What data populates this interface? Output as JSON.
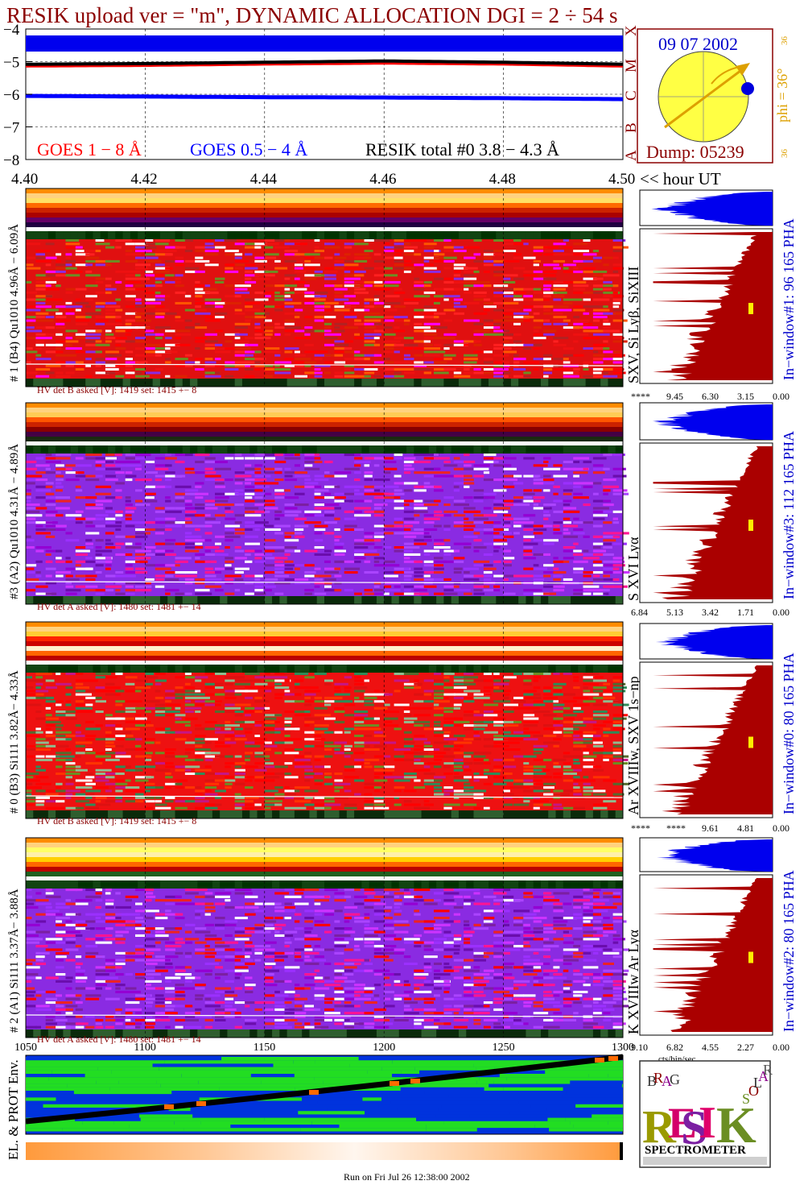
{
  "header": {
    "title": "RESIK upload ver = \"m\", DYNAMIC ALLOCATION  DGI =   2 ÷  54 s"
  },
  "goes_panel": {
    "legend": {
      "goes_long": "GOES 1 − 8 Å",
      "goes_short": "GOES 0.5 − 4 Å",
      "resik_total": "RESIK total #0  3.8 − 4.3 Å"
    },
    "class_letters": [
      "A",
      "B",
      "C",
      "M",
      "X"
    ],
    "colors": {
      "goes_long": "#ff0000",
      "goes_short": "#0000ff",
      "resik_total": "#000000"
    }
  },
  "time_axis": {
    "ticks": [
      "4.40",
      "4.42",
      "4.44",
      "4.46",
      "4.48",
      "4.50"
    ],
    "unit_label": "<< hour UT"
  },
  "sun_panel": {
    "date": "09 07 2002",
    "phi_label": "phi = 36°",
    "phi_small_top": "36",
    "phi_small_bottom": "36",
    "dump": "Dump: 05239",
    "colors": {
      "sun": "#ffff44",
      "arrow": "#dda000",
      "text": "#8b0000",
      "date": "#0000cc"
    }
  },
  "spectra": [
    {
      "det_label": "# 1 (B4) Qu1010 4.96Å − 6.09Å",
      "lines_label": "SXV, Si Lyβ, SiXIII",
      "pha_label": "In−window#1:   96 165  PHA",
      "hv_text": "HV det B asked [V]:  1419 set:  1415 +−    8",
      "pha_ticks": [
        "****",
        "9.45",
        "6.30",
        "3.15",
        "0.00"
      ],
      "palette": "red"
    },
    {
      "det_label": "#3 (A2) Qu1010  4.31Å − 4.89Å",
      "lines_label": "S XVI Lyα",
      "pha_label": "In−window#3:  112 165  PHA",
      "hv_text": "HV det A asked [V]:  1480 set:  1481 +−    14",
      "pha_ticks": [
        "6.84",
        "5.13",
        "3.42",
        "1.71",
        "0.00"
      ],
      "palette": "purple"
    },
    {
      "det_label": "# 0 (B3) Si111  3.82Å− 4.33Å",
      "lines_label": "Ar XVIIIw,  SXV  1s−np",
      "pha_label": "In−window#0:   80 165  PHA",
      "hv_text": "HV det B asked [V]:  1419 set:  1415 +−    8",
      "pha_ticks": [
        "****",
        "****",
        "9.61",
        "4.81",
        "0.00"
      ],
      "palette": "redgreen"
    },
    {
      "det_label": "# 2 (A1) Si111  3.37Å−  3.88Å",
      "lines_label": "K XVIIIw  Ar Lyα",
      "pha_label": "In−window#2:   80 165  PHA",
      "hv_text": "HV det A asked [V]:  1480 set:  1481 +−    14",
      "pha_ticks": [
        "9.10",
        "6.82",
        "4.55",
        "2.27",
        "0.00"
      ],
      "palette": "purple"
    }
  ],
  "pha_axis_unit": "cts/bin/sec",
  "env_panel": {
    "label": "EL. & PROT Env.",
    "ticks": [
      "1050",
      "1100",
      "1150",
      "1200",
      "1250",
      "1300"
    ]
  },
  "logo": {
    "letters": [
      "R",
      "E",
      "S",
      "I",
      "K"
    ],
    "small": [
      "B",
      "R",
      "A",
      "G",
      "S",
      "O",
      "L",
      "A",
      "R"
    ],
    "spectrometer": "SPECTROMETER"
  },
  "footer": {
    "run_on": "Run on Fri Jul 26 12:38:00 2002"
  },
  "chart_data": {
    "type": "line",
    "title": "RESIK upload ver = \"m\", DYNAMIC ALLOCATION  DGI =   2 ÷  54 s",
    "xlabel": "<< hour UT",
    "ylabel": "",
    "xlim": [
      4.4,
      4.5
    ],
    "ylim": [
      -8,
      -4
    ],
    "x": [
      4.4,
      4.42,
      4.44,
      4.46,
      4.48,
      4.5
    ],
    "series": [
      {
        "name": "GOES 1 − 8 Å",
        "color": "#ff0000",
        "values": [
          -5.12,
          -5.1,
          -5.06,
          -5.03,
          -5.06,
          -5.12
        ]
      },
      {
        "name": "GOES 0.5 − 4 Å",
        "color": "#0000ff",
        "values": [
          -6.05,
          -6.07,
          -6.09,
          -6.1,
          -6.12,
          -6.15
        ]
      },
      {
        "name": "RESIK total #0  3.8 − 4.3 Å",
        "color": "#000000",
        "values": [
          -5.08,
          -5.06,
          -5.02,
          -4.98,
          -5.02,
          -5.08
        ]
      }
    ],
    "y_ticks": [
      -4,
      -5,
      -6,
      -7,
      -8
    ],
    "grid": true
  }
}
